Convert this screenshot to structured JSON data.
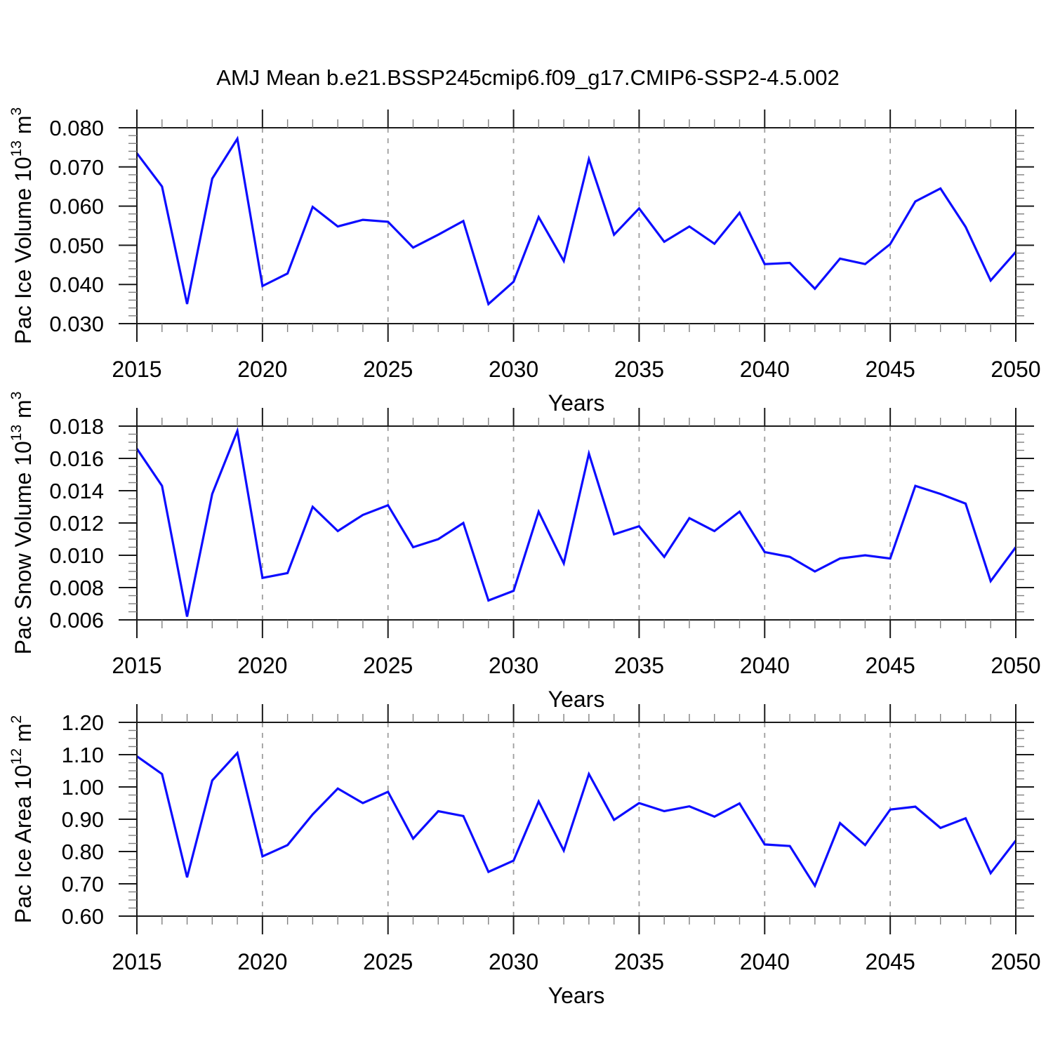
{
  "title": "AMJ Mean b.e21.BSSP245cmip6.f09_g17.CMIP6-SSP2-4.5.002",
  "colors": {
    "line": "#0d0dff",
    "frame": "#1a1a1a",
    "major_tick": "#1a1a1a",
    "minor_tick": "#808080",
    "gridline": "#9e9e9e",
    "text": "#000000",
    "background": "#ffffff"
  },
  "chart_data": [
    {
      "type": "line",
      "ylabel_parts": [
        {
          "t": "Pac Ice Volume 10"
        },
        {
          "t": "13",
          "sup": true
        },
        {
          "t": " m"
        },
        {
          "t": "3",
          "sup": true
        }
      ],
      "xlabel": "Years",
      "ylim": [
        0.03,
        0.08
      ],
      "ytick_values": [
        0.03,
        0.04,
        0.05,
        0.06,
        0.07,
        0.08
      ],
      "ytick_labels": [
        "0.030",
        "0.040",
        "0.050",
        "0.060",
        "0.070",
        "0.080"
      ],
      "y_minor_step": 0.002,
      "xlim": [
        2015,
        2050
      ],
      "xtick_major": [
        2015,
        2020,
        2025,
        2030,
        2035,
        2040,
        2045,
        2050
      ],
      "x_minor_step": 1,
      "grid_x": [
        2020,
        2025,
        2030,
        2035,
        2040,
        2045
      ],
      "x": [
        2015,
        2016,
        2017,
        2018,
        2019,
        2020,
        2021,
        2022,
        2023,
        2024,
        2025,
        2026,
        2027,
        2028,
        2029,
        2030,
        2031,
        2032,
        2033,
        2034,
        2035,
        2036,
        2037,
        2038,
        2039,
        2040,
        2041,
        2042,
        2043,
        2044,
        2045,
        2046,
        2047,
        2048,
        2049,
        2050
      ],
      "values": [
        0.0735,
        0.065,
        0.035,
        0.067,
        0.0772,
        0.0396,
        0.0428,
        0.0598,
        0.0548,
        0.0565,
        0.056,
        0.0494,
        0.0527,
        0.0562,
        0.035,
        0.0407,
        0.0572,
        0.046,
        0.072,
        0.0527,
        0.0594,
        0.0509,
        0.0548,
        0.0504,
        0.0583,
        0.0452,
        0.0455,
        0.0389,
        0.0466,
        0.0452,
        0.0503,
        0.0612,
        0.0645,
        0.0547,
        0.041,
        0.0483
      ]
    },
    {
      "type": "line",
      "ylabel_parts": [
        {
          "t": "Pac Snow Volume 10"
        },
        {
          "t": "13",
          "sup": true
        },
        {
          "t": " m"
        },
        {
          "t": "3",
          "sup": true
        }
      ],
      "xlabel": "Years",
      "ylim": [
        0.006,
        0.018
      ],
      "ytick_values": [
        0.006,
        0.008,
        0.01,
        0.012,
        0.014,
        0.016,
        0.018
      ],
      "ytick_labels": [
        "0.006",
        "0.008",
        "0.010",
        "0.012",
        "0.014",
        "0.016",
        "0.018"
      ],
      "y_minor_step": 0.0005,
      "xlim": [
        2015,
        2050
      ],
      "xtick_major": [
        2015,
        2020,
        2025,
        2030,
        2035,
        2040,
        2045,
        2050
      ],
      "x_minor_step": 1,
      "grid_x": [
        2020,
        2025,
        2030,
        2035,
        2040,
        2045
      ],
      "x": [
        2015,
        2016,
        2017,
        2018,
        2019,
        2020,
        2021,
        2022,
        2023,
        2024,
        2025,
        2026,
        2027,
        2028,
        2029,
        2030,
        2031,
        2032,
        2033,
        2034,
        2035,
        2036,
        2037,
        2038,
        2039,
        2040,
        2041,
        2042,
        2043,
        2044,
        2045,
        2046,
        2047,
        2048,
        2049,
        2050
      ],
      "values": [
        0.0166,
        0.0143,
        0.0062,
        0.0138,
        0.0177,
        0.0086,
        0.0089,
        0.013,
        0.0115,
        0.0125,
        0.0131,
        0.0105,
        0.011,
        0.012,
        0.0072,
        0.0078,
        0.0127,
        0.0095,
        0.0163,
        0.0113,
        0.0118,
        0.0099,
        0.0123,
        0.0115,
        0.0127,
        0.0102,
        0.0099,
        0.009,
        0.0098,
        0.01,
        0.0098,
        0.0143,
        0.0138,
        0.0132,
        0.0084,
        0.0105
      ]
    },
    {
      "type": "line",
      "ylabel_parts": [
        {
          "t": "Pac Ice Area 10"
        },
        {
          "t": "12",
          "sup": true
        },
        {
          "t": " m"
        },
        {
          "t": "2",
          "sup": true
        }
      ],
      "xlabel": "Years",
      "ylim": [
        0.6,
        1.2
      ],
      "ytick_values": [
        0.6,
        0.7,
        0.8,
        0.9,
        1.0,
        1.1,
        1.2
      ],
      "ytick_labels": [
        "0.60",
        "0.70",
        "0.80",
        "0.90",
        "1.00",
        "1.10",
        "1.20"
      ],
      "y_minor_step": 0.025,
      "xlim": [
        2015,
        2050
      ],
      "xtick_major": [
        2015,
        2020,
        2025,
        2030,
        2035,
        2040,
        2045,
        2050
      ],
      "x_minor_step": 1,
      "grid_x": [
        2020,
        2025,
        2030,
        2035,
        2040,
        2045
      ],
      "x": [
        2015,
        2016,
        2017,
        2018,
        2019,
        2020,
        2021,
        2022,
        2023,
        2024,
        2025,
        2026,
        2027,
        2028,
        2029,
        2030,
        2031,
        2032,
        2033,
        2034,
        2035,
        2036,
        2037,
        2038,
        2039,
        2040,
        2041,
        2042,
        2043,
        2044,
        2045,
        2046,
        2047,
        2048,
        2049,
        2050
      ],
      "values": [
        1.095,
        1.04,
        0.72,
        1.02,
        1.105,
        0.785,
        0.82,
        0.915,
        0.995,
        0.95,
        0.985,
        0.84,
        0.925,
        0.91,
        0.737,
        0.772,
        0.955,
        0.803,
        1.04,
        0.898,
        0.95,
        0.925,
        0.94,
        0.908,
        0.949,
        0.822,
        0.817,
        0.694,
        0.888,
        0.82,
        0.93,
        0.939,
        0.873,
        0.903,
        0.733,
        0.834
      ]
    }
  ]
}
